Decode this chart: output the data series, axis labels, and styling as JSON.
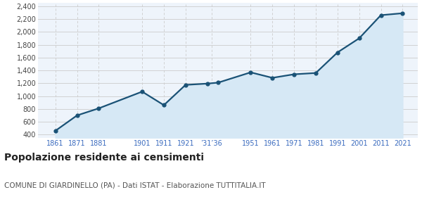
{
  "years": [
    1861,
    1871,
    1881,
    1901,
    1911,
    1921,
    1931,
    1936,
    1951,
    1961,
    1971,
    1981,
    1991,
    2001,
    2011,
    2021
  ],
  "population": [
    460,
    700,
    810,
    1070,
    860,
    1175,
    1195,
    1210,
    1370,
    1285,
    1340,
    1360,
    1680,
    1900,
    2260,
    2290
  ],
  "xtick_positions": [
    1861,
    1871,
    1881,
    1901,
    1911,
    1921,
    1933,
    1951,
    1961,
    1971,
    1981,
    1991,
    2001,
    2011,
    2021
  ],
  "xtick_labels": [
    "1861",
    "1871",
    "1881",
    "1901",
    "1911",
    "1921",
    "’31’36",
    "1951",
    "1961",
    "1971",
    "1981",
    "1991",
    "2001",
    "2011",
    "2021"
  ],
  "ylim": [
    350,
    2450
  ],
  "yticks": [
    400,
    600,
    800,
    1000,
    1200,
    1400,
    1600,
    1800,
    2000,
    2200,
    2400
  ],
  "xlim_left": 1853,
  "xlim_right": 2028,
  "line_color": "#1a5276",
  "fill_color": "#d6e8f5",
  "marker_color": "#1a5276",
  "grid_color_h": "#cccccc",
  "grid_color_v": "#cccccc",
  "bg_color": "#eef4fb",
  "title": "Popolazione residente ai censimenti",
  "subtitle": "COMUNE DI GIARDINELLO (PA) - Dati ISTAT - Elaborazione TUTTITALIA.IT",
  "title_fontsize": 10,
  "subtitle_fontsize": 7.5,
  "tick_color": "#3a6bbf"
}
